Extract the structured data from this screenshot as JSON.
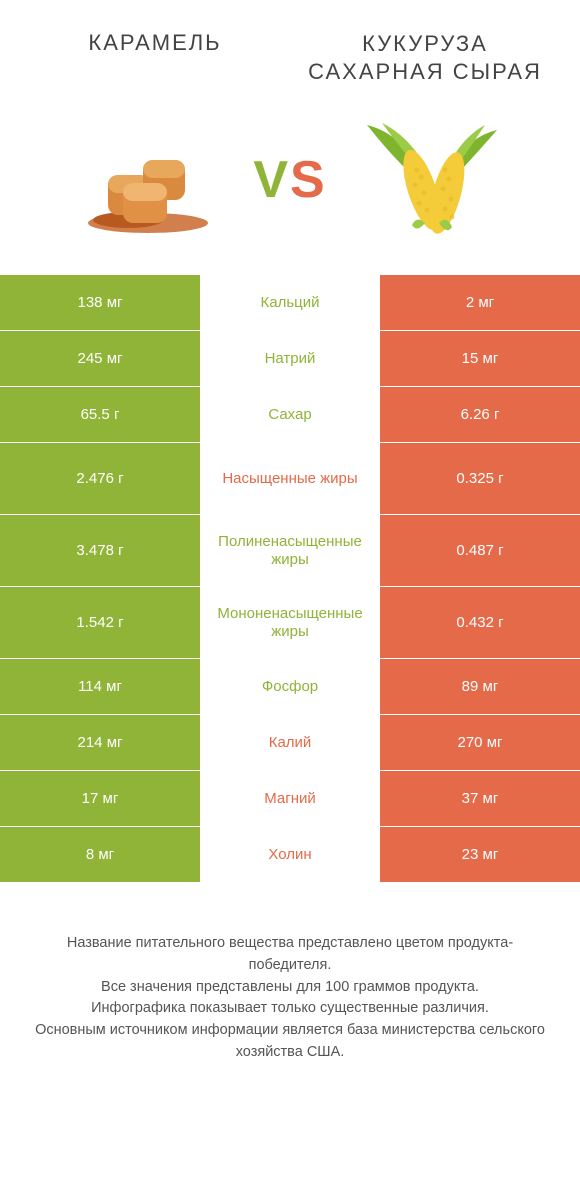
{
  "header": {
    "left_title": "Карамель",
    "right_title": "Кукуруза сахарная сырая",
    "vs": "VS"
  },
  "colors": {
    "green": "#8fb438",
    "orange": "#e46a4a",
    "background": "#ffffff",
    "text": "#333"
  },
  "table": {
    "rows": [
      {
        "left": "138 мг",
        "mid": "Кальций",
        "right": "2 мг",
        "winner": "left",
        "tall": false
      },
      {
        "left": "245 мг",
        "mid": "Натрий",
        "right": "15 мг",
        "winner": "left",
        "tall": false
      },
      {
        "left": "65.5 г",
        "mid": "Сахар",
        "right": "6.26 г",
        "winner": "left",
        "tall": false
      },
      {
        "left": "2.476 г",
        "mid": "Насыщенные жиры",
        "right": "0.325 г",
        "winner": "right",
        "tall": true
      },
      {
        "left": "3.478 г",
        "mid": "Полиненасыщенные жиры",
        "right": "0.487 г",
        "winner": "left",
        "tall": true
      },
      {
        "left": "1.542 г",
        "mid": "Мононенасыщенные жиры",
        "right": "0.432 г",
        "winner": "left",
        "tall": true
      },
      {
        "left": "114 мг",
        "mid": "Фосфор",
        "right": "89 мг",
        "winner": "left",
        "tall": false
      },
      {
        "left": "214 мг",
        "mid": "Калий",
        "right": "270 мг",
        "winner": "right",
        "tall": false
      },
      {
        "left": "17 мг",
        "mid": "Магний",
        "right": "37 мг",
        "winner": "right",
        "tall": false
      },
      {
        "left": "8 мг",
        "mid": "Холин",
        "right": "23 мг",
        "winner": "right",
        "tall": false
      }
    ]
  },
  "footnotes": [
    "Название питательного вещества представлено цветом продукта-победителя.",
    "Все значения представлены для 100 граммов продукта.",
    "Инфографика показывает только существенные различия.",
    "Основным источником информации является база министерства сельского хозяйства США."
  ]
}
